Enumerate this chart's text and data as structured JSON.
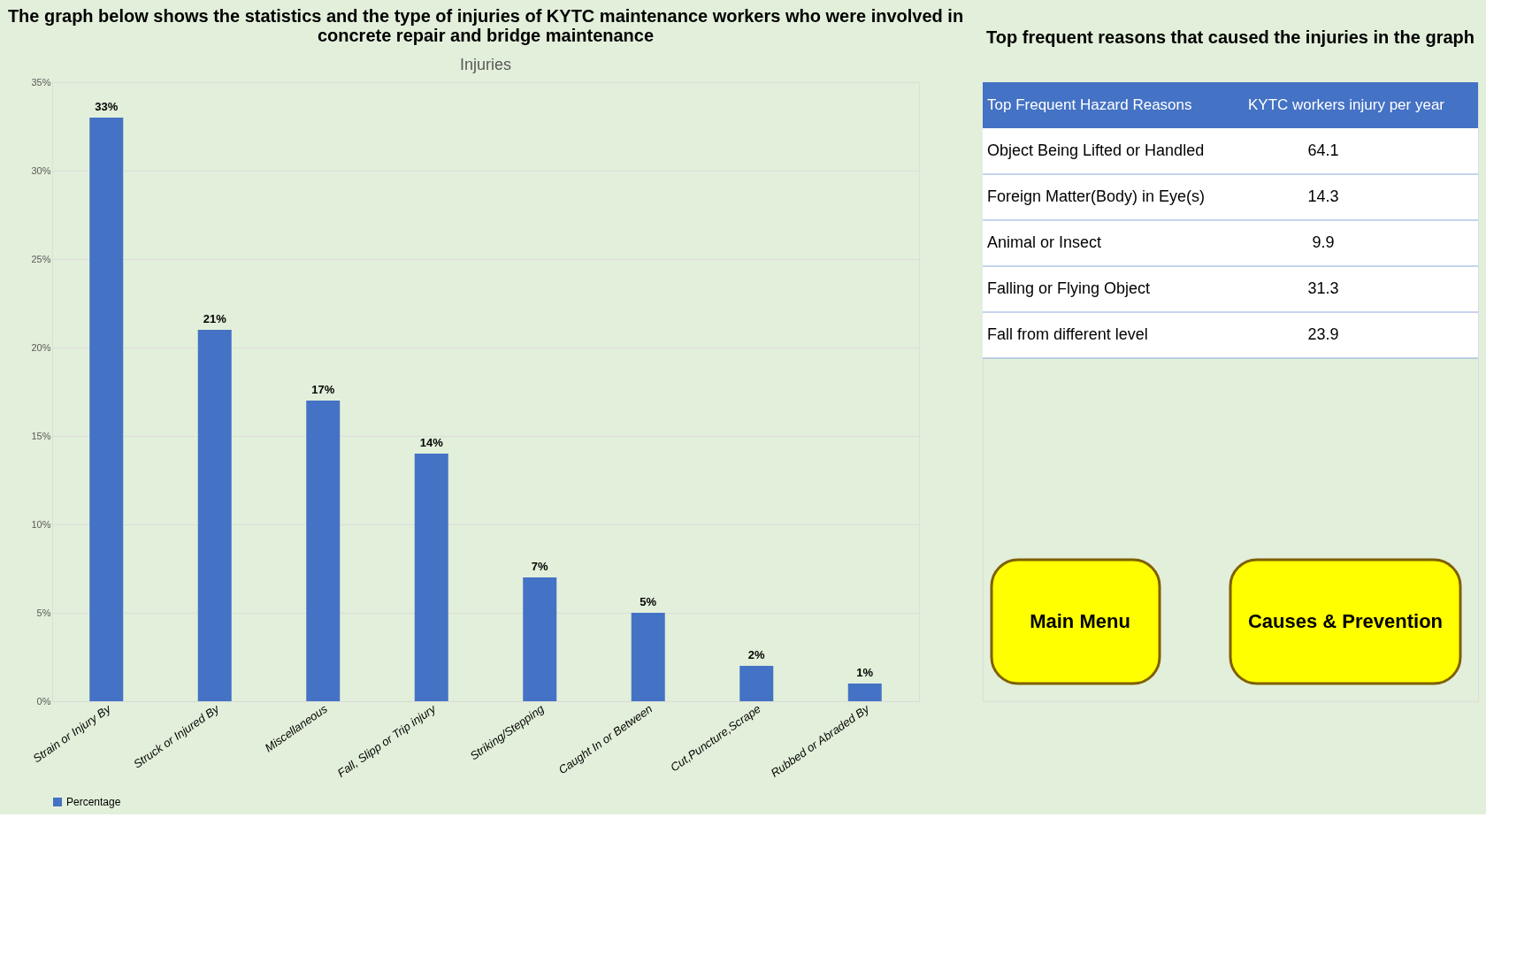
{
  "chart_data": [
    {
      "type": "bar",
      "title": "The graph below shows the statistics and the type of injuries of KYTC maintenance workers who were involved in concrete repair and bridge maintenance",
      "subtitle": "Injuries",
      "categories": [
        "Strain or Injury By",
        "Struck or Injured By",
        "Miscellaneous",
        "Fall, Slipp or Trip injury",
        "Striking/Stepping",
        "Caught In or Between",
        "Cut,Puncture,Scrape",
        "Rubbed or Abraded By"
      ],
      "series": [
        {
          "name": "Percentage",
          "color": "#4472c4",
          "values": [
            33,
            21,
            17,
            14,
            7,
            5,
            2,
            1
          ],
          "value_labels": [
            "33%",
            "21%",
            "17%",
            "14%",
            "7%",
            "5%",
            "2%",
            "1%"
          ]
        }
      ],
      "ylim": [
        0,
        35
      ],
      "yticks": [
        {
          "value": 0,
          "label": "0%"
        },
        {
          "value": 5,
          "label": "5%"
        },
        {
          "value": 10,
          "label": "10%"
        },
        {
          "value": 15,
          "label": "15%"
        },
        {
          "value": 20,
          "label": "20%"
        },
        {
          "value": 25,
          "label": "25%"
        },
        {
          "value": 30,
          "label": "30%"
        },
        {
          "value": 35,
          "label": "35%"
        }
      ],
      "grid": "y",
      "legend": "bottom"
    },
    {
      "type": "other",
      "title": "Top frequent reasons that caused the injuries in the graph",
      "xlabel": "Top Frequent Hazard Reasons",
      "ylabel": "KYTC workers injury per year",
      "categories": [
        "Object Being Lifted or Handled",
        "Foreign Matter(Body) in Eye(s)",
        "Animal or Insect",
        "Falling or Flying Object",
        "Fall from different level"
      ],
      "values": [
        64.1,
        14.3,
        9.9,
        31.3,
        23.9
      ],
      "data_labels": true,
      "annotations": [
        "Main Menu",
        "Causes & Prevention"
      ]
    }
  ]
}
